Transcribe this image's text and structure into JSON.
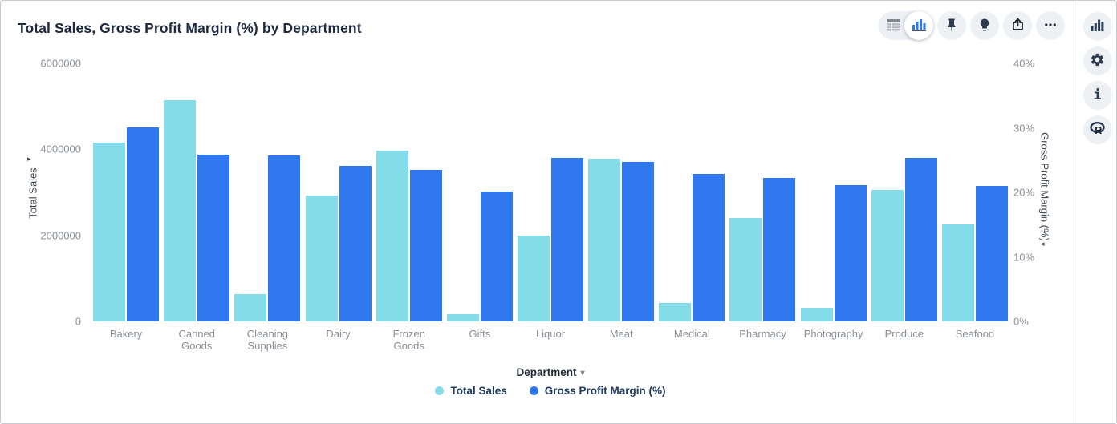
{
  "header": {
    "title": "Total Sales, Gross Profit Margin (%) by Department"
  },
  "toolbar": {
    "view_toggle": {
      "options": [
        "table-view",
        "chart-view"
      ],
      "active": "chart-view"
    },
    "buttons": [
      "pin",
      "insights-bulb",
      "export",
      "more-options"
    ]
  },
  "right_sidebar": {
    "buttons": [
      "chart-type",
      "settings",
      "info",
      "r-script"
    ]
  },
  "xaxis": {
    "name": "Department",
    "caret": "▾"
  },
  "chart_data": {
    "type": "bar",
    "title": "Total Sales, Gross Profit Margin (%) by Department",
    "xlabel": "Department",
    "grid": false,
    "legend_position": "bottom",
    "categories": [
      "Bakery",
      "Canned Goods",
      "Cleaning Supplies",
      "Dairy",
      "Frozen Goods",
      "Gifts",
      "Liquor",
      "Meat",
      "Medical",
      "Pharmacy",
      "Photography",
      "Produce",
      "Seafood"
    ],
    "series": [
      {
        "name": "Total Sales",
        "axis": "left",
        "color": "#84dce8",
        "values": [
          4150000,
          5150000,
          630000,
          2930000,
          3970000,
          170000,
          2000000,
          3790000,
          430000,
          2410000,
          320000,
          3060000,
          2250000
        ]
      },
      {
        "name": "Gross Profit Margin (%)",
        "axis": "right",
        "color": "#2e77ed",
        "values": [
          30.1,
          25.8,
          25.7,
          24.1,
          23.5,
          20.1,
          25.3,
          24.7,
          22.9,
          22.2,
          21.1,
          25.3,
          21.0
        ]
      }
    ],
    "left_axis": {
      "label": "Total Sales",
      "sort_arrow": "▸",
      "ticks": [
        "0",
        "2000000",
        "4000000",
        "6000000"
      ],
      "min": 0,
      "max": 6000000
    },
    "right_axis": {
      "label": "Gross Profit Margin (%)",
      "sort_arrow": "◂",
      "ticks": [
        "0%",
        "10%",
        "20%",
        "30%",
        "40%"
      ],
      "min": 0,
      "max": 40
    }
  }
}
